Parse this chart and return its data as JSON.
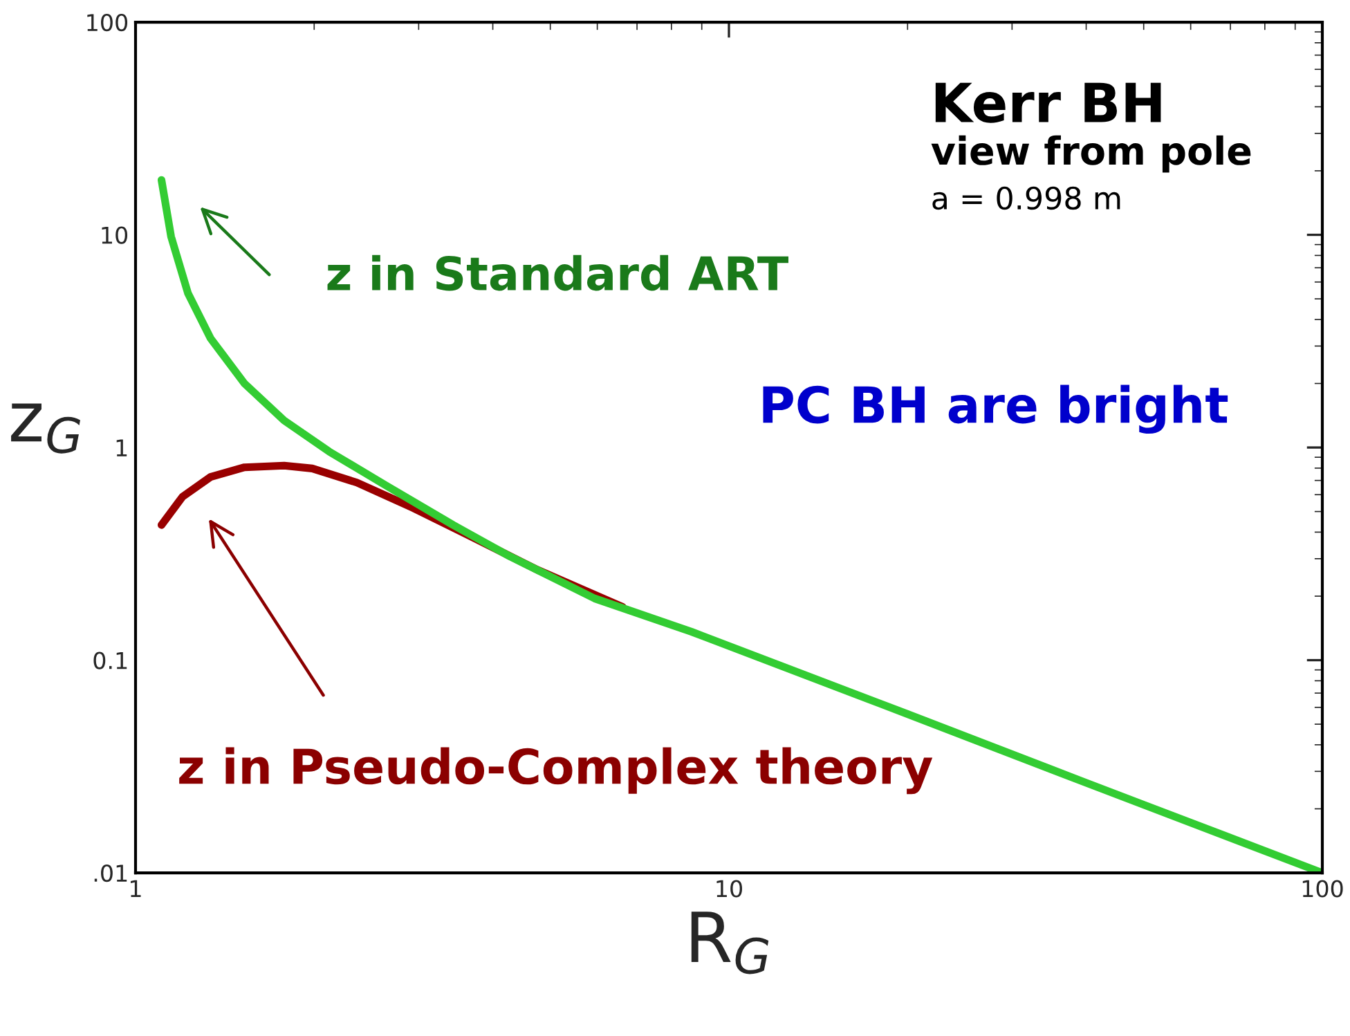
{
  "chart_data": {
    "type": "line",
    "xlabel": "R$_{G}$",
    "ylabel": "z$_{G}$",
    "log": "xy",
    "xlim": [
      1,
      100
    ],
    "ylim": [
      0.01,
      100
    ],
    "xticks": [
      1,
      10,
      100
    ],
    "yticks": [
      {
        "value": 0.01,
        "label": ".01"
      },
      0.1,
      1,
      10,
      100
    ],
    "grid": false,
    "marker": "none",
    "line_style": "solid",
    "series": [
      {
        "color": "#990000",
        "x": [
          1.106,
          1.2,
          1.338,
          1.526,
          1.78,
          1.985,
          2.36,
          2.94,
          3.67,
          4.77,
          6.62
        ],
        "values": [
          0.432,
          0.587,
          0.727,
          0.807,
          0.822,
          0.797,
          0.684,
          0.519,
          0.382,
          0.265,
          0.178
        ]
      },
      {
        "color": "#33cc33",
        "x": [
          1.106,
          1.148,
          1.226,
          1.338,
          1.526,
          1.78,
          2.12,
          2.64,
          3.43,
          4.27,
          5.94,
          8.65,
          20,
          39.3,
          50,
          100
        ],
        "values": [
          18.1,
          9.8,
          5.3,
          3.26,
          2.0,
          1.34,
          0.957,
          0.664,
          0.432,
          0.308,
          0.195,
          0.136,
          0.0558,
          0.027,
          0.0209,
          0.01
        ]
      }
    ],
    "annotations": [
      "z in Standard ART",
      "z in Pseudo-Complex theory",
      "Kerr BH",
      "view from pole",
      "a = 0.998 m",
      "PC BH are bright"
    ]
  }
}
